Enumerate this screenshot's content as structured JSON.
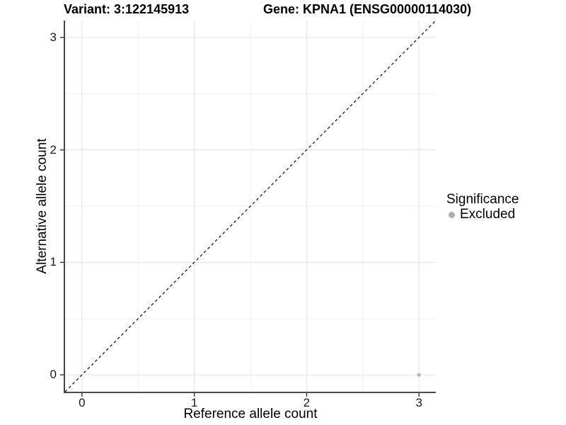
{
  "figure": {
    "title_variant": "Variant: 3:122145913",
    "title_gene": "Gene: KPNA1 (ENSG00000114030)"
  },
  "chart_data": {
    "type": "scatter",
    "title": "Variant: 3:122145913   Gene: KPNA1 (ENSG00000114030)",
    "xlabel": "Reference allele count",
    "ylabel": "Alternative allele count",
    "xlim": [
      -0.15,
      3.15
    ],
    "ylim": [
      -0.15,
      3.15
    ],
    "xticks": [
      0,
      1,
      2,
      3
    ],
    "yticks": [
      0,
      1,
      2,
      3
    ],
    "xminor": [
      0.5,
      1.5,
      2.5
    ],
    "yminor": [
      0.5,
      1.5,
      2.5
    ],
    "grid": "major+minor",
    "reference_line": {
      "type": "identity",
      "slope": 1,
      "intercept": 0,
      "style": "dashed",
      "color": "#000000"
    },
    "series": [
      {
        "name": "Excluded",
        "color": "#b9b9b9",
        "points": [
          [
            3,
            0
          ]
        ]
      }
    ],
    "legend": {
      "title": "Significance",
      "position": "right",
      "items": [
        {
          "label": "Excluded",
          "color": "#adadad",
          "marker": "circle"
        }
      ]
    },
    "colors": {
      "background": "#ffffff",
      "grid_major": "#e3e3e3",
      "grid_minor": "#f0f0f0",
      "axis_line": "#333333",
      "tick_mark": "#333333"
    }
  }
}
